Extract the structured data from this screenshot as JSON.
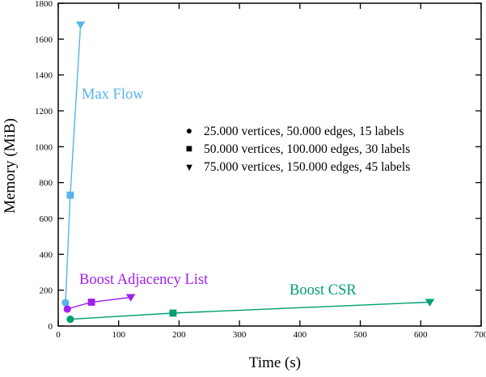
{
  "chart_data": {
    "type": "line",
    "title": "",
    "xlabel": "Time (s)",
    "ylabel": "Memory (MiB)",
    "xlim": [
      0,
      700
    ],
    "ylim": [
      0,
      1800
    ],
    "x_ticks": [
      0,
      100,
      200,
      300,
      400,
      500,
      600,
      700
    ],
    "y_ticks": [
      0,
      200,
      400,
      600,
      800,
      1000,
      1200,
      1400,
      1600,
      1800
    ],
    "grid": false,
    "legend_position": "center-right",
    "series": [
      {
        "name": "Max Flow",
        "color": "#56B4E9",
        "points": [
          {
            "x": 12,
            "y": 130,
            "marker": "circle"
          },
          {
            "x": 20,
            "y": 730,
            "marker": "square"
          },
          {
            "x": 37,
            "y": 1680,
            "marker": "triangle-down"
          }
        ]
      },
      {
        "name": "Boost Adjacency List",
        "color": "#A020F0",
        "points": [
          {
            "x": 15,
            "y": 95,
            "marker": "circle"
          },
          {
            "x": 55,
            "y": 133,
            "marker": "square"
          },
          {
            "x": 120,
            "y": 160,
            "marker": "triangle-down"
          }
        ]
      },
      {
        "name": "Boost CSR",
        "color": "#009E73",
        "points": [
          {
            "x": 20,
            "y": 38,
            "marker": "circle"
          },
          {
            "x": 190,
            "y": 72,
            "marker": "square"
          },
          {
            "x": 615,
            "y": 133,
            "marker": "triangle-down"
          }
        ]
      }
    ],
    "legend": {
      "entries": [
        {
          "symbol": "●",
          "marker": "circle",
          "label": "25.000 vertices, 50.000 edges, 15 labels"
        },
        {
          "symbol": "■",
          "marker": "square",
          "label": "50.000 vertices, 100.000 edges, 30 labels"
        },
        {
          "symbol": "▼",
          "marker": "triangle-down",
          "label": "75.000 vertices, 150.000 edges, 45 labels"
        }
      ]
    }
  }
}
